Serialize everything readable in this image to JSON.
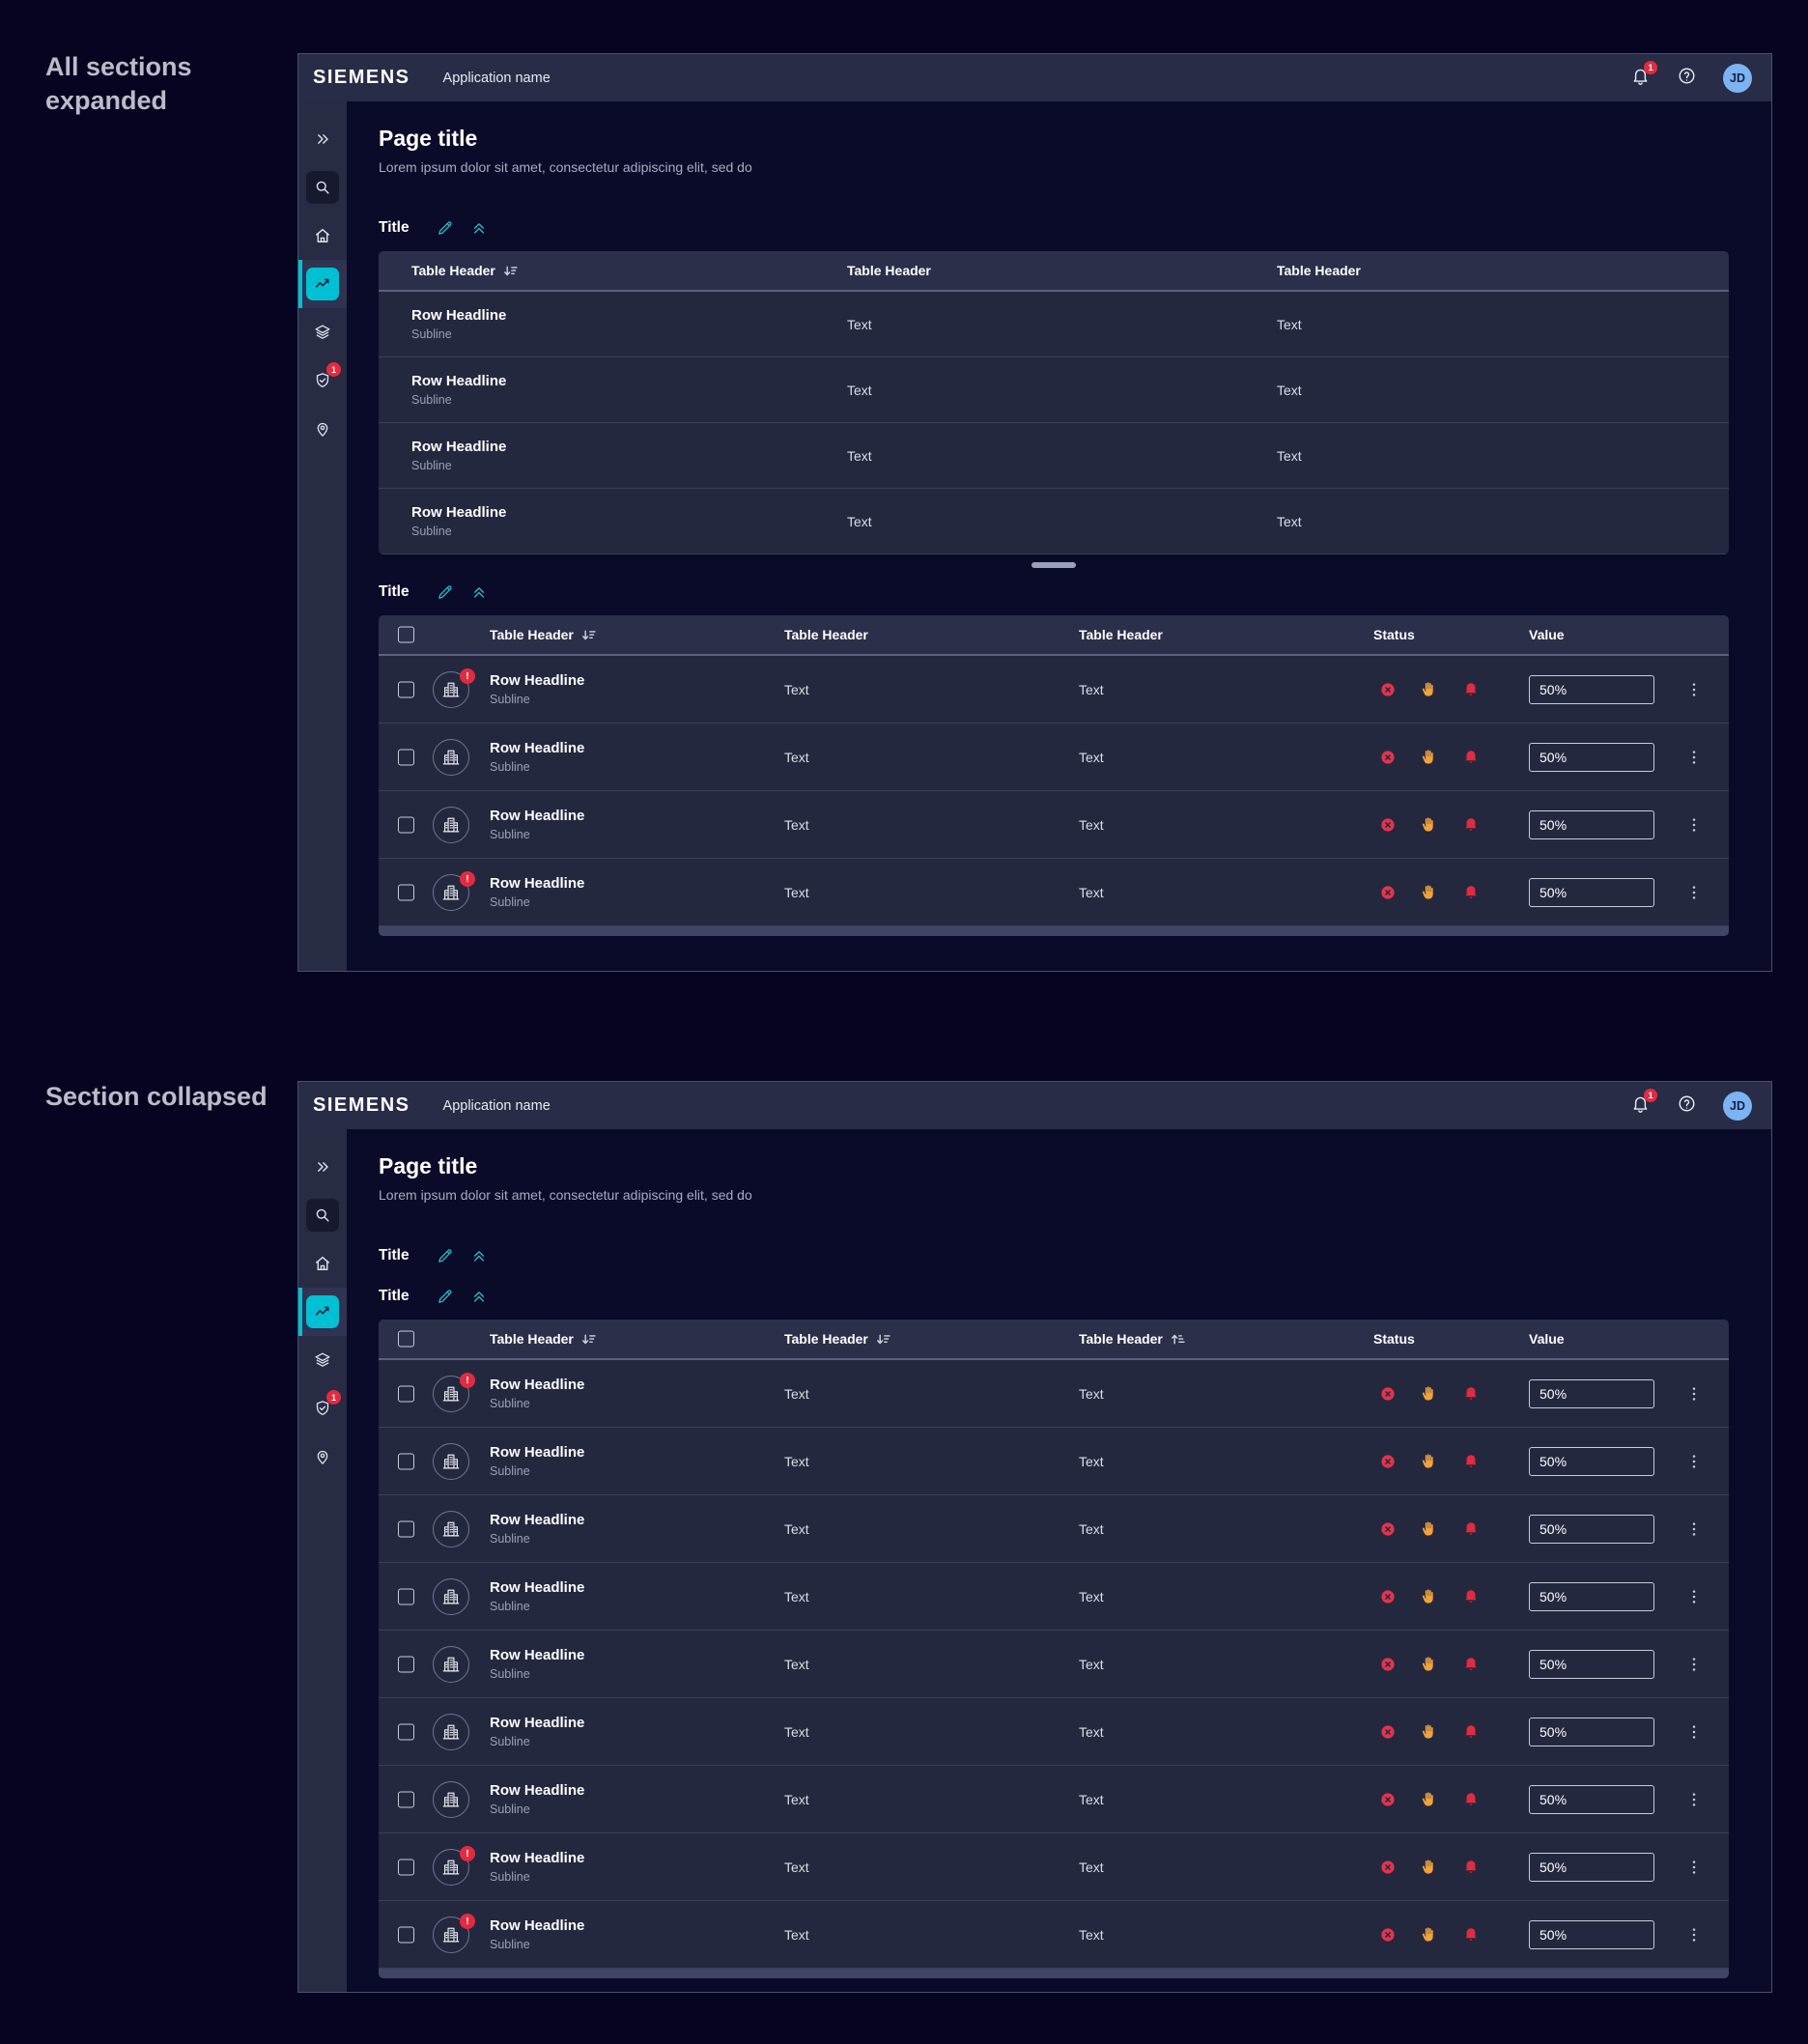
{
  "annotations": [
    "All sections expanded",
    "Section collapsed"
  ],
  "colors": {
    "accent_teal": "#00c0d4",
    "badge_red": "#e32b3f",
    "status_cancel_red": "#e2354b",
    "status_hand_orange": "#f0a23c",
    "status_bell_red": "#e22b3f",
    "avatar_blue": "#7cb3f2",
    "background": "#050521",
    "surface": "#24283f"
  },
  "topbar": {
    "brand": "SIEMENS",
    "app_name": "Application name",
    "bell_badge": "1",
    "avatar_initials": "JD"
  },
  "sidebar": {
    "items": [
      {
        "id": "collapse",
        "icon": "chevrons-right"
      },
      {
        "id": "search",
        "icon": "search",
        "boxed": true
      },
      {
        "id": "home",
        "icon": "home"
      },
      {
        "id": "analytics",
        "icon": "chart",
        "active": true
      },
      {
        "id": "layers",
        "icon": "layers"
      },
      {
        "id": "security",
        "icon": "shield",
        "badge": "1"
      },
      {
        "id": "location",
        "icon": "location-pin"
      }
    ]
  },
  "page": {
    "title": "Page title",
    "subtitle": "Lorem ipsum dolor sit amet, consectetur adipiscing elit, sed do"
  },
  "status_icons": [
    "cancel",
    "hand",
    "bell"
  ],
  "windows": [
    {
      "label": "All sections expanded",
      "sections": [
        {
          "title": "Title",
          "collapsed": false,
          "drag_handle": true,
          "table": {
            "kind": "simple",
            "headers": [
              {
                "label": "Table Header",
                "sort": "desc"
              },
              {
                "label": "Table Header"
              },
              {
                "label": "Table Header"
              }
            ],
            "rows": [
              {
                "headline": "Row Headline",
                "subline": "Subline",
                "cells": [
                  "Text",
                  "Text"
                ]
              },
              {
                "headline": "Row Headline",
                "subline": "Subline",
                "cells": [
                  "Text",
                  "Text"
                ]
              },
              {
                "headline": "Row Headline",
                "subline": "Subline",
                "cells": [
                  "Text",
                  "Text"
                ]
              },
              {
                "headline": "Row Headline",
                "subline": "Subline",
                "cells": [
                  "Text",
                  "Text"
                ]
              }
            ]
          }
        },
        {
          "title": "Title",
          "collapsed": false,
          "drag_handle": false,
          "table": {
            "kind": "rich",
            "headers": [
              {
                "label": "Table Header",
                "sort": "desc"
              },
              {
                "label": "Table Header"
              },
              {
                "label": "Table Header"
              }
            ],
            "status_header": "Status",
            "value_header": "Value",
            "rows": [
              {
                "headline": "Row Headline",
                "subline": "Subline",
                "cells": [
                  "Text",
                  "Text"
                ],
                "alert": true,
                "alert_text": "!",
                "value": "50%"
              },
              {
                "headline": "Row Headline",
                "subline": "Subline",
                "cells": [
                  "Text",
                  "Text"
                ],
                "alert": false,
                "value": "50%"
              },
              {
                "headline": "Row Headline",
                "subline": "Subline",
                "cells": [
                  "Text",
                  "Text"
                ],
                "alert": false,
                "value": "50%"
              },
              {
                "headline": "Row Headline",
                "subline": "Subline",
                "cells": [
                  "Text",
                  "Text"
                ],
                "alert": true,
                "alert_text": "!",
                "value": "50%"
              }
            ]
          }
        }
      ]
    },
    {
      "label": "Section collapsed",
      "sections": [
        {
          "title": "Title",
          "collapsed": true,
          "drag_handle": false
        },
        {
          "title": "Title",
          "collapsed": false,
          "drag_handle": false,
          "table": {
            "kind": "rich",
            "headers": [
              {
                "label": "Table Header",
                "sort": "desc"
              },
              {
                "label": "Table Header",
                "sort": "desc"
              },
              {
                "label": "Table Header",
                "sort": "asc"
              }
            ],
            "status_header": "Status",
            "value_header": "Value",
            "rows": [
              {
                "headline": "Row Headline",
                "subline": "Subline",
                "cells": [
                  "Text",
                  "Text"
                ],
                "alert": true,
                "alert_text": "!",
                "value": "50%"
              },
              {
                "headline": "Row Headline",
                "subline": "Subline",
                "cells": [
                  "Text",
                  "Text"
                ],
                "alert": false,
                "value": "50%"
              },
              {
                "headline": "Row Headline",
                "subline": "Subline",
                "cells": [
                  "Text",
                  "Text"
                ],
                "alert": false,
                "value": "50%"
              },
              {
                "headline": "Row Headline",
                "subline": "Subline",
                "cells": [
                  "Text",
                  "Text"
                ],
                "alert": false,
                "value": "50%"
              },
              {
                "headline": "Row Headline",
                "subline": "Subline",
                "cells": [
                  "Text",
                  "Text"
                ],
                "alert": false,
                "value": "50%"
              },
              {
                "headline": "Row Headline",
                "subline": "Subline",
                "cells": [
                  "Text",
                  "Text"
                ],
                "alert": false,
                "value": "50%"
              },
              {
                "headline": "Row Headline",
                "subline": "Subline",
                "cells": [
                  "Text",
                  "Text"
                ],
                "alert": false,
                "value": "50%"
              },
              {
                "headline": "Row Headline",
                "subline": "Subline",
                "cells": [
                  "Text",
                  "Text"
                ],
                "alert": true,
                "alert_text": "!",
                "value": "50%"
              },
              {
                "headline": "Row Headline",
                "subline": "Subline",
                "cells": [
                  "Text",
                  "Text"
                ],
                "alert": true,
                "alert_text": "!",
                "value": "50%"
              }
            ]
          }
        }
      ]
    }
  ]
}
